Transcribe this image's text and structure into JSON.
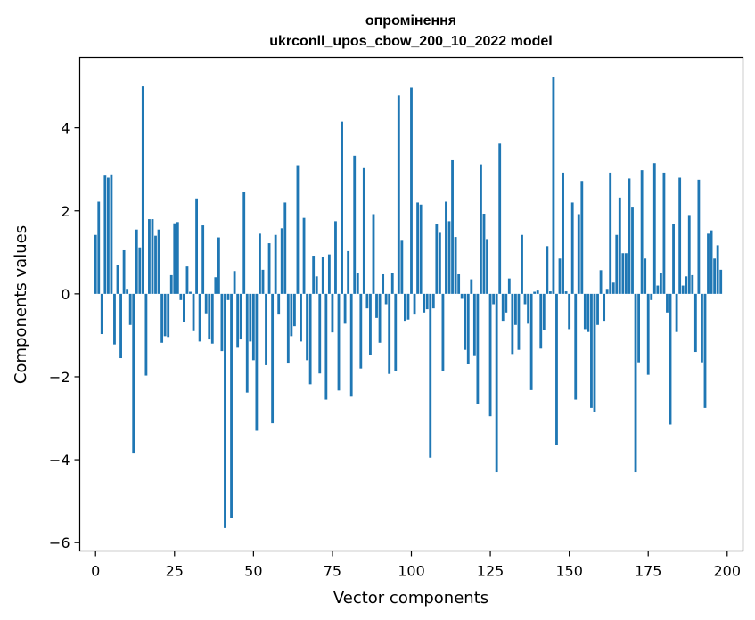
{
  "chart_data": {
    "type": "bar",
    "title": "опромінення",
    "subtitle": "ukrconll_upos_cbow_200_10_2022 model",
    "xlabel": "Vector components",
    "ylabel": "Components values",
    "xlim": [
      -5,
      205
    ],
    "ylim": [
      -6.2,
      5.7
    ],
    "xticks": [
      0,
      25,
      50,
      75,
      100,
      125,
      150,
      175,
      200
    ],
    "yticks": [
      -6,
      -4,
      -2,
      0,
      2,
      4
    ],
    "ytick_labels": [
      "−6",
      "−4",
      "−2",
      "0",
      "2",
      "4"
    ],
    "bar_color": "#1f77b4",
    "grid": false,
    "values": [
      1.42,
      2.22,
      -0.97,
      2.85,
      2.8,
      2.88,
      -1.22,
      0.7,
      -1.55,
      1.05,
      0.12,
      -0.75,
      -3.85,
      1.55,
      1.12,
      5.0,
      -1.97,
      1.8,
      1.8,
      1.4,
      1.55,
      -1.18,
      -1.02,
      -1.04,
      0.45,
      1.7,
      1.73,
      -0.15,
      -0.68,
      0.66,
      0.05,
      -0.9,
      2.3,
      -1.15,
      1.65,
      -0.47,
      -1.1,
      -1.2,
      0.4,
      1.36,
      -1.38,
      -5.65,
      -0.15,
      -5.4,
      0.55,
      -1.3,
      -1.1,
      2.45,
      -2.38,
      -1.15,
      -1.6,
      -3.3,
      1.45,
      0.58,
      -1.72,
      1.22,
      -3.12,
      1.42,
      -0.5,
      1.58,
      2.2,
      -1.68,
      -1.02,
      -0.78,
      3.1,
      -1.15,
      1.83,
      -1.6,
      -2.18,
      0.92,
      0.42,
      -1.92,
      0.88,
      -2.55,
      0.95,
      -0.93,
      1.75,
      -2.33,
      4.15,
      -0.72,
      1.03,
      -2.48,
      3.33,
      0.5,
      -1.8,
      3.03,
      -0.35,
      -1.48,
      1.92,
      -0.58,
      -1.18,
      0.47,
      -0.25,
      -1.93,
      0.5,
      -1.85,
      4.78,
      1.3,
      -0.65,
      -0.62,
      4.97,
      -0.5,
      2.2,
      2.15,
      -0.45,
      -0.37,
      -3.95,
      -0.35,
      1.68,
      1.47,
      -1.85,
      2.22,
      1.75,
      3.22,
      1.37,
      0.47,
      -0.12,
      -1.35,
      -1.7,
      0.35,
      -1.5,
      -2.65,
      3.12,
      1.93,
      1.32,
      -2.95,
      -0.25,
      -4.3,
      3.62,
      -0.65,
      -0.45,
      0.37,
      -1.45,
      -0.75,
      -1.35,
      1.42,
      -0.25,
      -0.72,
      -2.32,
      0.05,
      0.08,
      -1.32,
      -0.88,
      1.15,
      0.06,
      5.22,
      -3.65,
      0.85,
      2.92,
      0.06,
      -0.85,
      2.2,
      -2.55,
      1.92,
      2.72,
      -0.85,
      -0.92,
      -2.75,
      -2.85,
      -0.75,
      0.57,
      -0.65,
      0.12,
      2.92,
      0.27,
      1.42,
      2.32,
      0.98,
      0.98,
      2.78,
      2.1,
      -4.3,
      -1.65,
      2.98,
      0.85,
      -1.95,
      -0.15,
      3.15,
      0.2,
      0.5,
      2.92,
      -0.45,
      -3.15,
      1.68,
      -0.92,
      2.8,
      0.2,
      0.42,
      1.9,
      0.45,
      -1.4,
      2.75,
      -1.65,
      -2.75,
      1.45,
      1.53,
      0.85,
      1.17,
      0.58
    ]
  }
}
